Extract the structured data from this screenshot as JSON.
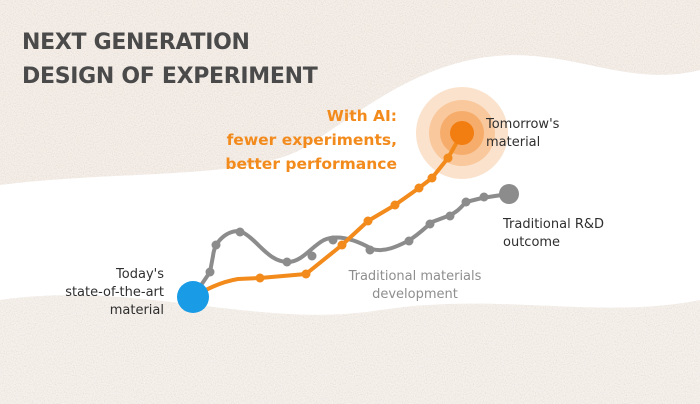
{
  "title": {
    "line1": "NEXT GENERATION",
    "line2": "DESIGN OF EXPERIMENT"
  },
  "ai_callout": {
    "line1": "With AI:",
    "line2": "fewer experiments,",
    "line3": "better performance"
  },
  "labels": {
    "start": [
      "Today's",
      "state-of-the-art",
      "material"
    ],
    "ai_end": [
      "Tomorrow's",
      "material"
    ],
    "traditional_end": [
      "Traditional R&D",
      "outcome"
    ],
    "traditional_path": [
      "Traditional materials",
      "development"
    ]
  },
  "colors": {
    "ai_path": "#f28a1c",
    "traditional_path": "#8c8c8c",
    "start_node": "#1a9be6",
    "title": "#4a4a4a",
    "texture": "#f6ece4"
  }
}
